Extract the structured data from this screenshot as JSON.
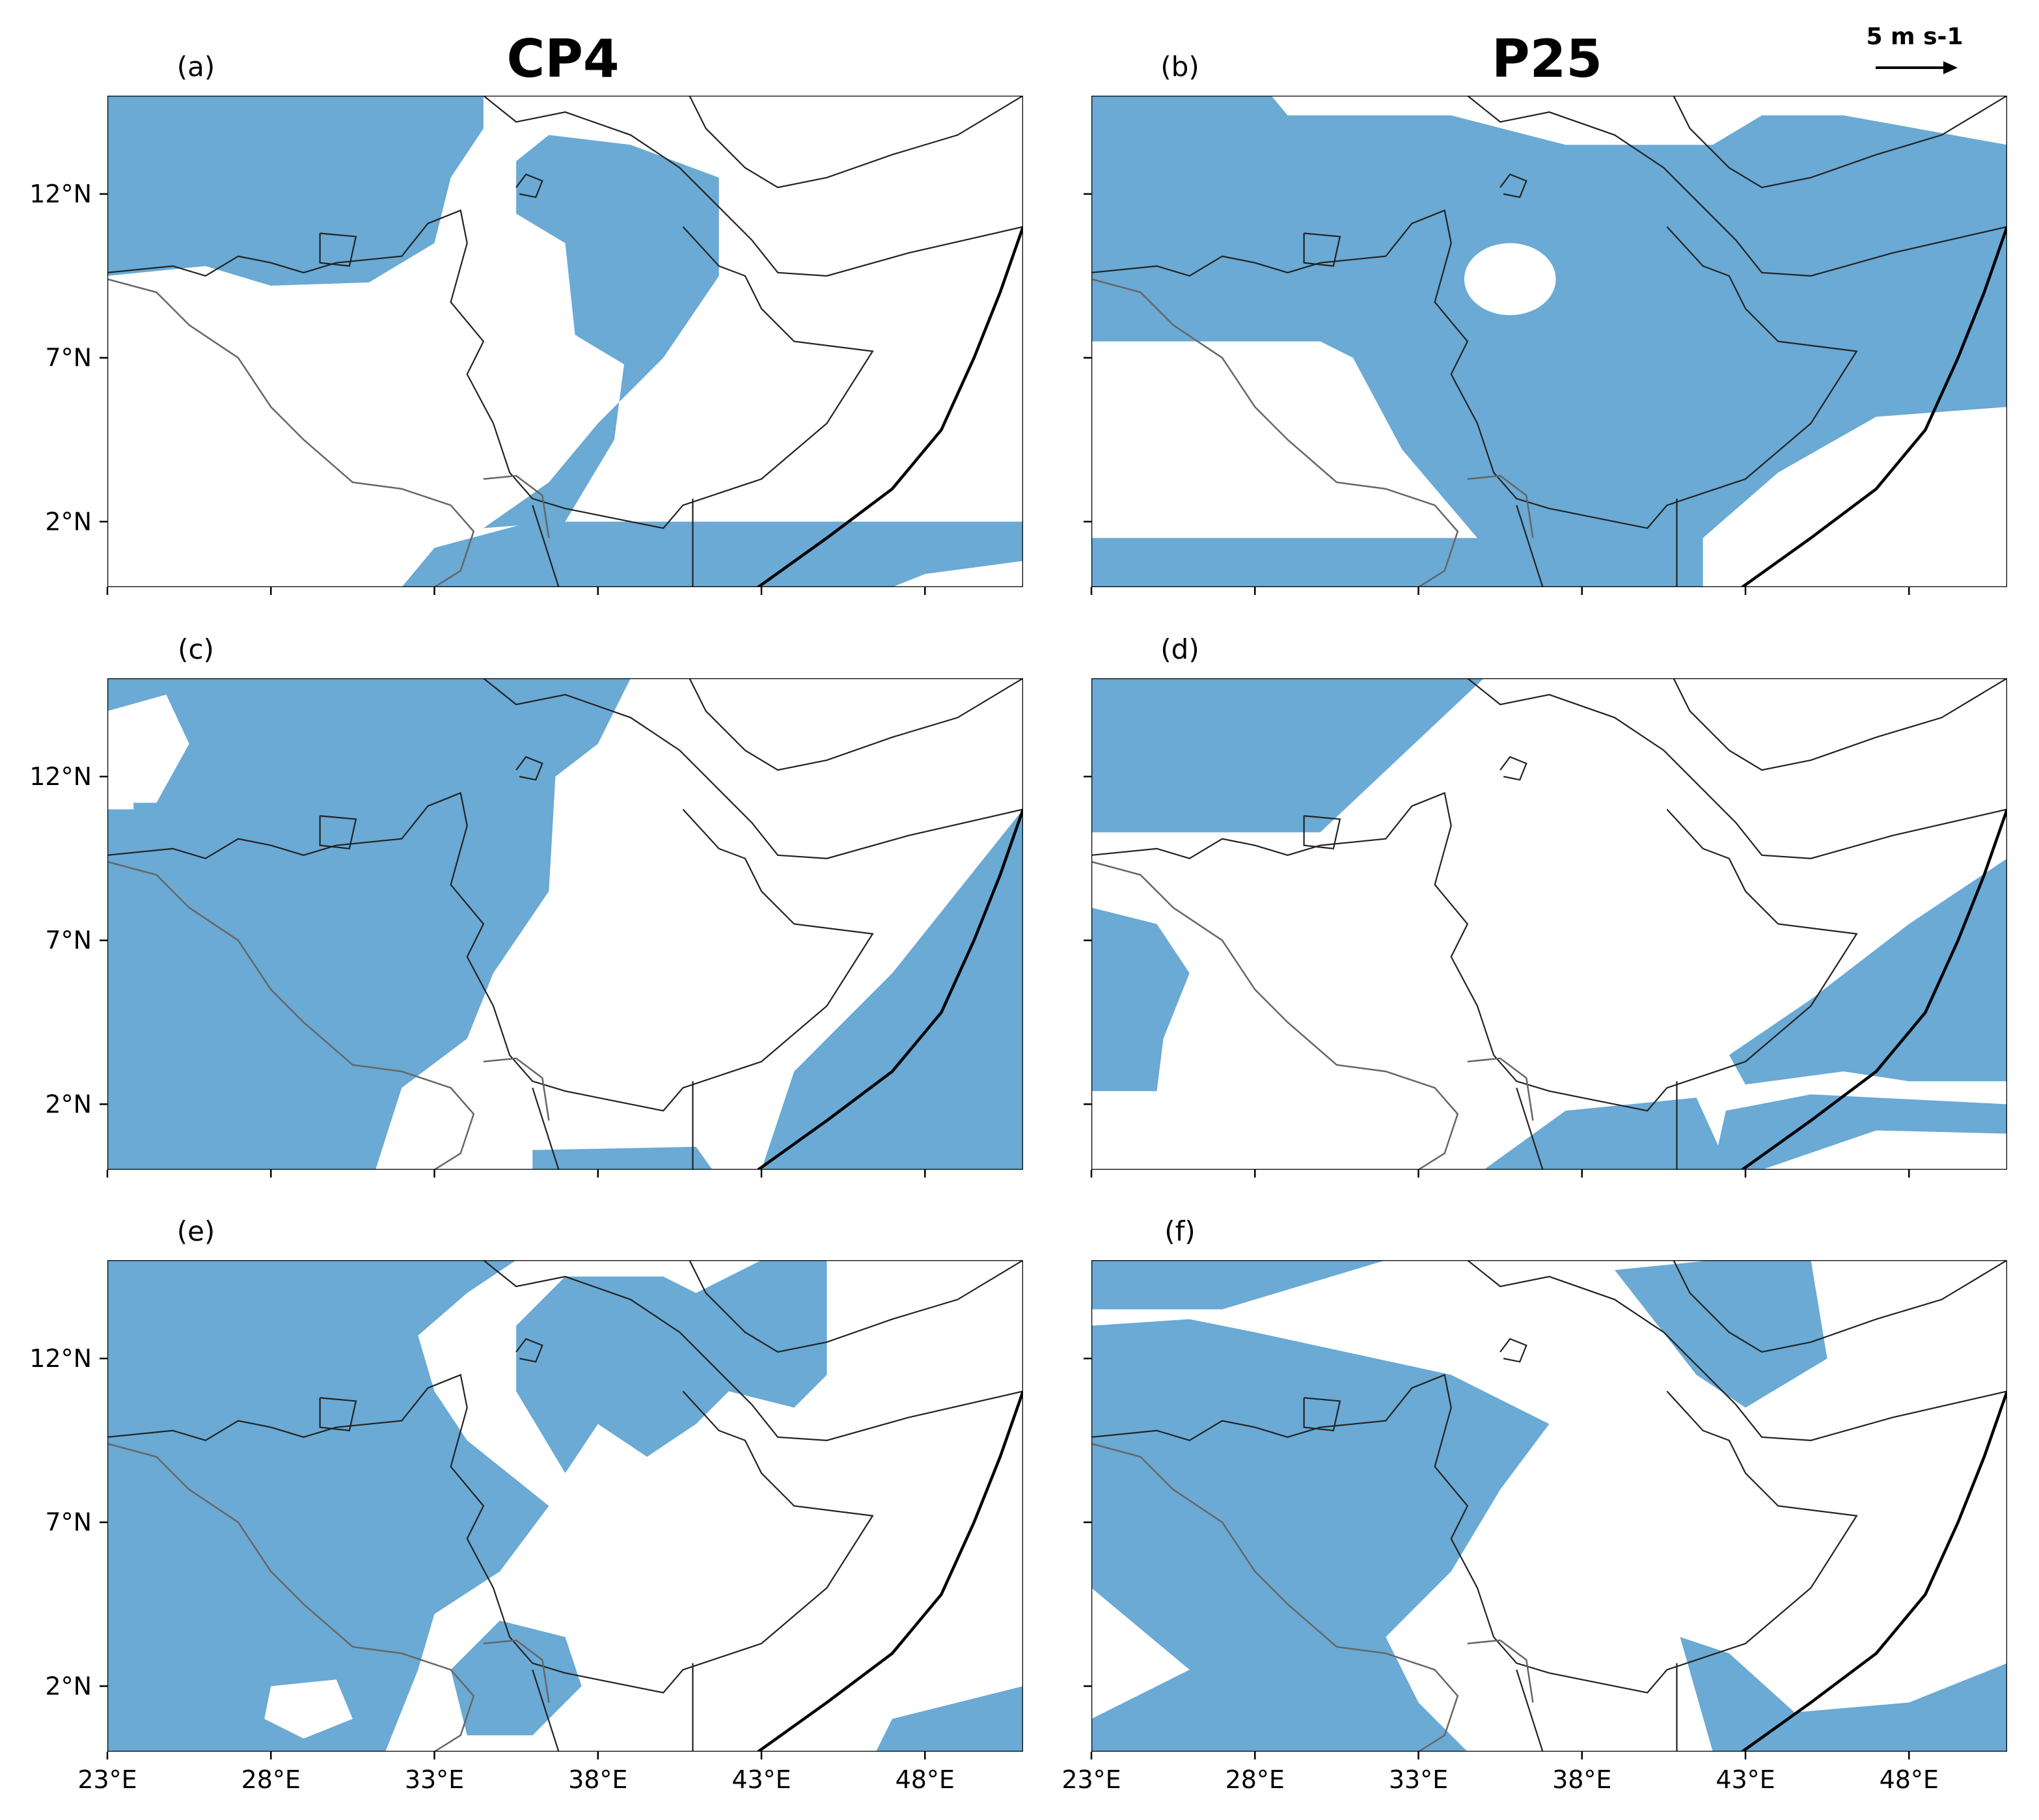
{
  "figure": {
    "titles": [
      "CP4",
      "P25"
    ],
    "scale_label": "5 m s-1",
    "panels": [
      "(a)",
      "(b)",
      "(c)",
      "(d)",
      "(e)",
      "(f)"
    ],
    "x_tick_labels": [
      "23°E",
      "28°E",
      "33°E",
      "38°E",
      "43°E",
      "48°E"
    ],
    "y_tick_labels": [
      "12°N",
      "7°N",
      "2°N"
    ]
  }
}
